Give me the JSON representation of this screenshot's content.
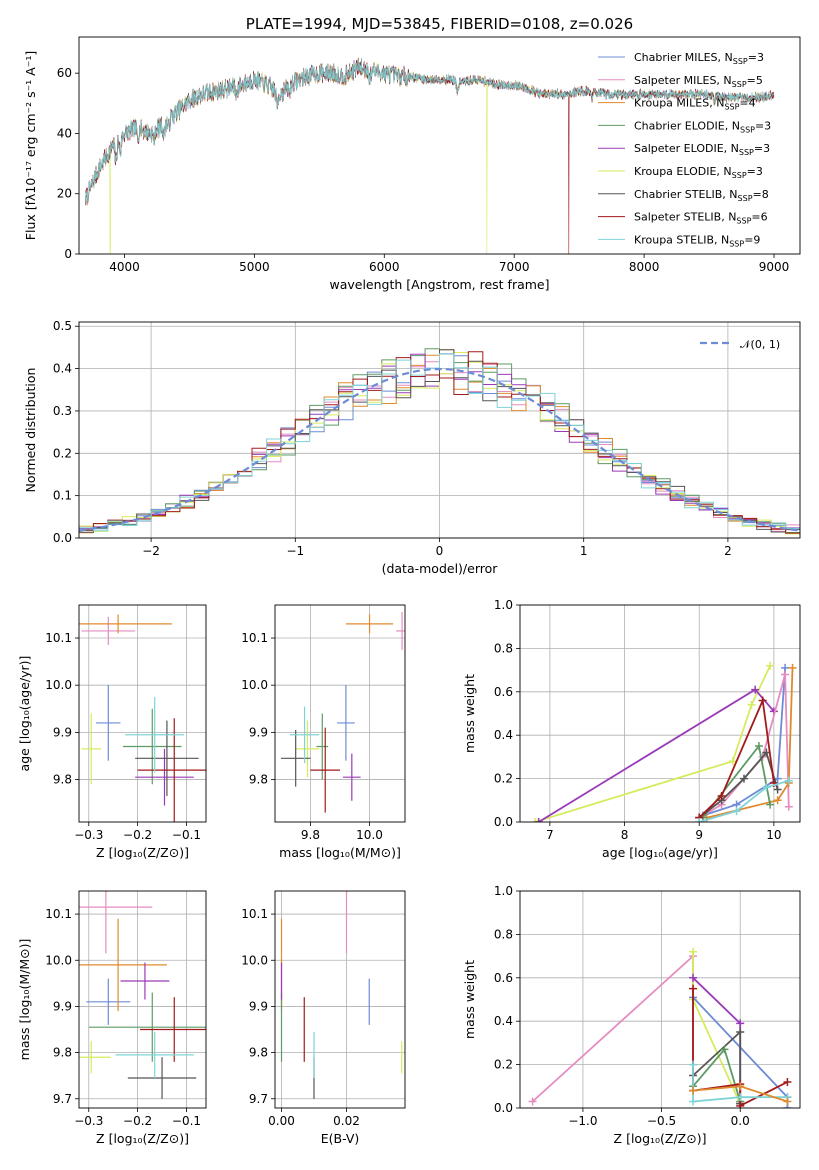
{
  "colors": {
    "Chabrier MILES": "#6d8bd6",
    "Salpeter MILES": "#e58cc0",
    "Kroupa MILES": "#e08a2e",
    "Chabrier ELODIE": "#5e9a64",
    "Salpeter ELODIE": "#9b3ab8",
    "Kroupa ELODIE": "#d6eb5e",
    "Chabrier STELIB": "#555555",
    "Salpeter STELIB": "#a31a1a",
    "Kroupa STELIB": "#7fd3d7"
  },
  "chart_data": [
    {
      "id": "spectrum",
      "type": "line",
      "title": "PLATE=1994, MJD=53845, FIBERID=0108, z=0.026",
      "xlabel": "wavelength [Angstrom, rest frame]",
      "ylabel": "Flux [fλ10⁻¹⁷ erg cm⁻² s⁻¹ A⁻¹]",
      "xlim": [
        3650,
        9200
      ],
      "ylim": [
        0,
        72
      ],
      "xticks": [
        4000,
        5000,
        6000,
        7000,
        8000,
        9000
      ],
      "yticks": [
        0,
        20,
        40,
        60
      ],
      "grid": false,
      "legend": "upper-right",
      "series": [
        {
          "name": "Chabrier MILES, N_SSP=3"
        },
        {
          "name": "Salpeter MILES, N_SSP=5"
        },
        {
          "name": "Kroupa MILES, N_SSP=4"
        },
        {
          "name": "Chabrier ELODIE, N_SSP=3"
        },
        {
          "name": "Salpeter ELODIE, N_SSP=3"
        },
        {
          "name": "Kroupa ELODIE, N_SSP=3"
        },
        {
          "name": "Chabrier STELIB, N_SSP=8"
        },
        {
          "name": "Salpeter STELIB, N_SSP=6"
        },
        {
          "name": "Kroupa STELIB, N_SSP=9"
        }
      ],
      "continuum": {
        "x": [
          3700,
          3800,
          3900,
          4000,
          4100,
          4200,
          4300,
          4400,
          4500,
          4600,
          4700,
          4800,
          4900,
          5000,
          5100,
          5200,
          5300,
          5400,
          5500,
          5600,
          5700,
          5800,
          5900,
          6000,
          6100,
          6200,
          6300,
          6400,
          6500,
          6600,
          6700,
          6800,
          6900,
          7000,
          7100,
          7200,
          7300,
          7400,
          7500,
          7600,
          7700,
          7800,
          7900,
          8000,
          8100,
          8200,
          8300,
          8400,
          8500,
          8600,
          8700,
          8800,
          8900,
          9000
        ],
        "y": [
          18,
          28,
          35,
          40,
          42,
          40,
          43,
          47,
          51,
          53,
          54,
          55,
          56,
          58,
          56,
          53,
          57,
          59,
          60,
          60,
          59,
          62,
          61,
          60,
          59,
          59,
          58,
          58,
          58,
          57,
          58,
          57,
          56,
          56,
          55,
          53,
          53,
          53,
          54,
          54,
          53,
          53,
          53,
          53,
          53,
          53,
          53,
          53,
          53,
          52,
          52,
          52,
          52,
          53
        ]
      },
      "dropouts": [
        {
          "series": "Kroupa ELODIE, N_SSP=3",
          "x": 3890
        },
        {
          "series": "Kroupa ELODIE, N_SSP=3",
          "x": 6790
        },
        {
          "series": "Salpeter STELIB, N_SSP=6",
          "x": 7420
        }
      ]
    },
    {
      "id": "residuals",
      "type": "histogram",
      "xlabel": "(data-model)/error",
      "ylabel": "Normed distribution",
      "xlim": [
        -2.5,
        2.5
      ],
      "ylim": [
        0,
        0.51
      ],
      "xticks": [
        -2,
        -1,
        0,
        1,
        2
      ],
      "yticks": [
        0.0,
        0.1,
        0.2,
        0.3,
        0.4,
        0.5
      ],
      "grid": true,
      "legend": "upper-right",
      "bin_width": 0.1,
      "reference": {
        "name": "𝒩(0, 1)",
        "type": "gaussian",
        "mu": 0,
        "sigma": 1
      }
    },
    {
      "id": "age-vs-Z",
      "type": "errorbar",
      "xlabel": "Z [log₁₀(Z/Z⊙)]",
      "ylabel": "age  [log₁₀(age/yr)]",
      "xlim": [
        -0.32,
        -0.06
      ],
      "ylim": [
        9.71,
        10.17
      ],
      "xticks": [
        -0.3,
        -0.2,
        -0.1
      ],
      "yticks": [
        9.8,
        9.9,
        10.0,
        10.1
      ],
      "grid": true,
      "points": [
        {
          "series": "Chabrier MILES",
          "x": -0.26,
          "y": 9.92,
          "xerr": 0.025,
          "yerr": 0.08
        },
        {
          "series": "Salpeter MILES",
          "x": -0.26,
          "y": 10.115,
          "xerr": 0.055,
          "yerr": 0.03
        },
        {
          "series": "Kroupa MILES",
          "x": -0.24,
          "y": 10.13,
          "xerr": 0.11,
          "yerr": 0.02
        },
        {
          "series": "Chabrier ELODIE",
          "x": -0.17,
          "y": 9.87,
          "xerr": 0.06,
          "yerr": 0.08
        },
        {
          "series": "Salpeter ELODIE",
          "x": -0.145,
          "y": 9.805,
          "xerr": 0.06,
          "yerr": 0.06
        },
        {
          "series": "Kroupa ELODIE",
          "x": -0.295,
          "y": 9.865,
          "xerr": 0.02,
          "yerr": 0.075
        },
        {
          "series": "Chabrier STELIB",
          "x": -0.14,
          "y": 9.845,
          "xerr": 0.065,
          "yerr": 0.08
        },
        {
          "series": "Salpeter STELIB",
          "x": -0.125,
          "y": 9.82,
          "xerr": 0.075,
          "yerr": 0.11
        },
        {
          "series": "Kroupa STELIB",
          "x": -0.165,
          "y": 9.895,
          "xerr": 0.06,
          "yerr": 0.08
        }
      ]
    },
    {
      "id": "age-vs-mass",
      "type": "errorbar",
      "xlabel": "mass [log₁₀(M/M⊙)]",
      "ylabel": "",
      "xlim": [
        9.68,
        10.12
      ],
      "ylim": [
        9.71,
        10.17
      ],
      "xticks": [
        9.8,
        10.0
      ],
      "yticks": [
        9.8,
        9.9,
        10.0,
        10.1
      ],
      "grid": true,
      "points": [
        {
          "series": "Chabrier MILES",
          "x": 9.92,
          "y": 9.92,
          "xerr": 0.03,
          "yerr": 0.08
        },
        {
          "series": "Salpeter MILES",
          "x": 10.11,
          "y": 10.115,
          "xerr": 0.02,
          "yerr": 0.04
        },
        {
          "series": "Kroupa MILES",
          "x": 10.0,
          "y": 10.13,
          "xerr": 0.08,
          "yerr": 0.02
        },
        {
          "series": "Chabrier ELODIE",
          "x": 9.84,
          "y": 9.87,
          "xerr": 0.02,
          "yerr": 0.07
        },
        {
          "series": "Salpeter ELODIE",
          "x": 9.94,
          "y": 9.805,
          "xerr": 0.03,
          "yerr": 0.05
        },
        {
          "series": "Kroupa ELODIE",
          "x": 9.79,
          "y": 9.865,
          "xerr": 0.04,
          "yerr": 0.06
        },
        {
          "series": "Chabrier STELIB",
          "x": 9.75,
          "y": 9.845,
          "xerr": 0.05,
          "yerr": 0.06
        },
        {
          "series": "Salpeter STELIB",
          "x": 9.85,
          "y": 9.82,
          "xerr": 0.05,
          "yerr": 0.09
        },
        {
          "series": "Kroupa STELIB",
          "x": 9.78,
          "y": 9.895,
          "xerr": 0.05,
          "yerr": 0.06
        }
      ]
    },
    {
      "id": "weight-vs-age",
      "type": "line",
      "xlabel": "age  [log₁₀(age/yr)]",
      "ylabel": "mass weight",
      "xlim": [
        6.6,
        10.35
      ],
      "ylim": [
        0,
        1.0
      ],
      "xticks": [
        7,
        8,
        9,
        10
      ],
      "yticks": [
        0.0,
        0.2,
        0.4,
        0.6,
        0.8,
        1.0
      ],
      "grid": true,
      "series": [
        {
          "series": "Kroupa ELODIE",
          "x": [
            6.8,
            9.45,
            9.7,
            9.95
          ],
          "y": [
            0.0,
            0.28,
            0.54,
            0.72
          ]
        },
        {
          "series": "Salpeter ELODIE",
          "x": [
            6.85,
            9.75,
            10.0
          ],
          "y": [
            0.0,
            0.61,
            0.51
          ]
        },
        {
          "series": "Chabrier MILES",
          "x": [
            9.05,
            9.5,
            10.05,
            10.15
          ],
          "y": [
            0.03,
            0.08,
            0.2,
            0.71
          ]
        },
        {
          "series": "Salpeter MILES",
          "x": [
            9.0,
            9.3,
            9.85,
            10.15,
            10.2
          ],
          "y": [
            0.02,
            0.08,
            0.3,
            0.68,
            0.07
          ]
        },
        {
          "series": "Kroupa MILES",
          "x": [
            9.1,
            10.05,
            10.2,
            10.25
          ],
          "y": [
            0.02,
            0.1,
            0.18,
            0.71
          ]
        },
        {
          "series": "Chabrier ELODIE",
          "x": [
            9.05,
            9.8,
            9.95
          ],
          "y": [
            0.02,
            0.35,
            0.08
          ]
        },
        {
          "series": "Chabrier STELIB",
          "x": [
            9.0,
            9.3,
            9.6,
            9.9,
            10.05
          ],
          "y": [
            0.02,
            0.1,
            0.2,
            0.32,
            0.15
          ]
        },
        {
          "series": "Salpeter STELIB",
          "x": [
            9.0,
            9.3,
            9.85,
            10.0
          ],
          "y": [
            0.02,
            0.12,
            0.56,
            0.18
          ]
        },
        {
          "series": "Kroupa STELIB",
          "x": [
            9.0,
            9.5,
            9.9,
            10.2
          ],
          "y": [
            0.0,
            0.05,
            0.16,
            0.19
          ]
        }
      ]
    },
    {
      "id": "mass-vs-Z",
      "type": "errorbar",
      "xlabel": "Z [log₁₀(Z/Z⊙)]",
      "ylabel": "mass [log₁₀(M/M⊙)]",
      "xlim": [
        -0.32,
        -0.06
      ],
      "ylim": [
        9.68,
        10.15
      ],
      "xticks": [
        -0.3,
        -0.2,
        -0.1
      ],
      "yticks": [
        9.7,
        9.8,
        9.9,
        10.0,
        10.1
      ],
      "grid": true,
      "points": [
        {
          "series": "Chabrier MILES",
          "x": -0.26,
          "y": 9.91,
          "xerr": 0.045,
          "yerr": 0.05
        },
        {
          "series": "Salpeter MILES",
          "x": -0.265,
          "y": 10.115,
          "xerr": 0.095,
          "yerr": 0.1
        },
        {
          "series": "Kroupa MILES",
          "x": -0.24,
          "y": 9.99,
          "xerr": 0.1,
          "yerr": 0.1
        },
        {
          "series": "Chabrier ELODIE",
          "x": -0.17,
          "y": 9.855,
          "xerr": 0.13,
          "yerr": 0.075
        },
        {
          "series": "Salpeter ELODIE",
          "x": -0.185,
          "y": 9.955,
          "xerr": 0.05,
          "yerr": 0.04
        },
        {
          "series": "Kroupa ELODIE",
          "x": -0.295,
          "y": 9.79,
          "xerr": 0.04,
          "yerr": 0.035
        },
        {
          "series": "Chabrier STELIB",
          "x": -0.15,
          "y": 9.745,
          "xerr": 0.07,
          "yerr": 0.045
        },
        {
          "series": "Salpeter STELIB",
          "x": -0.125,
          "y": 9.85,
          "xerr": 0.07,
          "yerr": 0.07
        },
        {
          "series": "Kroupa STELIB",
          "x": -0.165,
          "y": 9.795,
          "xerr": 0.08,
          "yerr": 0.05
        }
      ]
    },
    {
      "id": "mass-vs-ebv",
      "type": "errorbar",
      "xlabel": "E(B-V)",
      "ylabel": "",
      "xlim": [
        -0.002,
        0.038
      ],
      "ylim": [
        9.68,
        10.15
      ],
      "xticks": [
        0.0,
        0.02
      ],
      "yticks": [
        9.7,
        9.8,
        9.9,
        10.0,
        10.1
      ],
      "grid": true,
      "points": [
        {
          "series": "Chabrier MILES",
          "x": 0.027,
          "y": 9.91,
          "yerr": 0.05
        },
        {
          "series": "Salpeter MILES",
          "x": 0.02,
          "y": 10.115,
          "yerr": 0.1
        },
        {
          "series": "Kroupa MILES",
          "x": 0.0,
          "y": 9.99,
          "yerr": 0.1
        },
        {
          "series": "Chabrier ELODIE",
          "x": 0.0,
          "y": 9.855,
          "yerr": 0.075
        },
        {
          "series": "Salpeter ELODIE",
          "x": 0.0,
          "y": 9.955,
          "yerr": 0.04
        },
        {
          "series": "Kroupa ELODIE",
          "x": 0.037,
          "y": 9.79,
          "yerr": 0.035
        },
        {
          "series": "Chabrier STELIB",
          "x": 0.01,
          "y": 9.745,
          "yerr": 0.045
        },
        {
          "series": "Salpeter STELIB",
          "x": 0.007,
          "y": 9.85,
          "yerr": 0.07
        },
        {
          "series": "Kroupa STELIB",
          "x": 0.01,
          "y": 9.795,
          "yerr": 0.05
        }
      ]
    },
    {
      "id": "weight-vs-Z",
      "type": "line",
      "xlabel": "Z [log₁₀(Z/Z⊙)]",
      "ylabel": "mass weight",
      "xlim": [
        -1.4,
        0.38
      ],
      "ylim": [
        0,
        1.0
      ],
      "xticks": [
        -1.0,
        -0.5,
        0.0
      ],
      "yticks": [
        0.0,
        0.2,
        0.4,
        0.6,
        0.8,
        1.0
      ],
      "grid": true,
      "series": [
        {
          "series": "Salpeter MILES",
          "x": [
            -1.32,
            -0.3,
            -0.3
          ],
          "y": [
            0.03,
            0.7,
            0.08
          ]
        },
        {
          "series": "Kroupa ELODIE",
          "x": [
            -0.3,
            -0.3,
            0.0
          ],
          "y": [
            0.72,
            0.5,
            0.02
          ]
        },
        {
          "series": "Salpeter ELODIE",
          "x": [
            -0.3,
            0.0,
            0.0
          ],
          "y": [
            0.6,
            0.39,
            0.02
          ]
        },
        {
          "series": "Chabrier MILES",
          "x": [
            -0.3,
            0.3,
            0.3
          ],
          "y": [
            0.51,
            0.05,
            0.0
          ]
        },
        {
          "series": "Chabrier STELIB",
          "x": [
            -0.3,
            0.0,
            0.0
          ],
          "y": [
            0.15,
            0.35,
            0.02
          ]
        },
        {
          "series": "Chabrier ELODIE",
          "x": [
            -0.3,
            -0.1,
            0.0
          ],
          "y": [
            0.1,
            0.27,
            0.03
          ]
        },
        {
          "series": "Salpeter STELIB",
          "x": [
            -0.3,
            -0.3,
            0.0,
            0.0,
            0.3
          ],
          "y": [
            0.55,
            0.08,
            0.11,
            0.01,
            0.12
          ]
        },
        {
          "series": "Kroupa STELIB",
          "x": [
            -0.3,
            -0.3,
            0.0,
            0.3
          ],
          "y": [
            0.2,
            0.03,
            0.05,
            0.05
          ]
        },
        {
          "series": "Kroupa MILES",
          "x": [
            -0.3,
            0.0,
            0.3
          ],
          "y": [
            0.08,
            0.1,
            0.03
          ]
        }
      ]
    }
  ]
}
